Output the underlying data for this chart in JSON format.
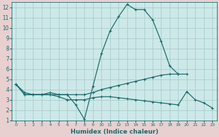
{
  "xlabel": "Humidex (Indice chaleur)",
  "bg_color": "#cde8e8",
  "plot_bg_color": "#cde8e8",
  "label_bg_color": "#e8d0d0",
  "grid_color": "#a8cccc",
  "line_color": "#1a6b6b",
  "xlim": [
    -0.5,
    23.5
  ],
  "ylim": [
    1,
    12.5
  ],
  "xticks": [
    0,
    1,
    2,
    3,
    4,
    5,
    6,
    7,
    8,
    9,
    10,
    11,
    12,
    13,
    14,
    15,
    16,
    17,
    18,
    19,
    20,
    21,
    22,
    23
  ],
  "yticks": [
    1,
    2,
    3,
    4,
    5,
    6,
    7,
    8,
    9,
    10,
    11,
    12
  ],
  "series1_x": [
    0,
    1,
    2,
    3,
    4,
    5,
    6,
    7,
    8,
    9,
    10,
    11,
    12,
    13,
    14,
    15,
    16,
    17,
    18,
    19,
    20
  ],
  "series1_y": [
    4.5,
    3.7,
    3.5,
    3.5,
    3.5,
    3.5,
    3.5,
    2.5,
    1.1,
    4.3,
    7.5,
    9.7,
    11.1,
    12.3,
    11.8,
    11.8,
    10.8,
    8.7,
    6.3,
    5.5,
    5.5
  ],
  "series2_x": [
    0,
    1,
    2,
    3,
    4,
    5,
    6,
    7,
    8,
    9,
    10,
    11,
    12,
    13,
    14,
    15,
    16,
    17,
    18,
    19
  ],
  "series2_y": [
    4.5,
    3.5,
    3.5,
    3.5,
    3.7,
    3.5,
    3.5,
    3.5,
    3.5,
    3.7,
    4.0,
    4.2,
    4.4,
    4.6,
    4.8,
    5.0,
    5.2,
    5.4,
    5.5,
    5.5
  ],
  "series3_x": [
    0,
    1,
    2,
    3,
    4,
    5,
    6,
    7,
    8,
    9,
    10,
    11,
    12,
    13,
    14,
    15,
    16,
    17,
    18,
    19,
    20,
    21,
    22,
    23
  ],
  "series3_y": [
    4.5,
    3.5,
    3.5,
    3.5,
    3.5,
    3.3,
    3.0,
    3.0,
    3.0,
    3.2,
    3.3,
    3.3,
    3.2,
    3.1,
    3.0,
    2.9,
    2.8,
    2.7,
    2.6,
    2.5,
    3.8,
    3.0,
    2.7,
    2.2
  ]
}
